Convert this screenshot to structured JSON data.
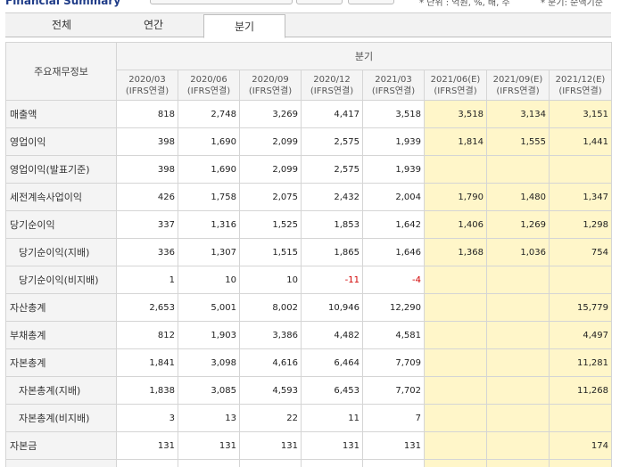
{
  "top": {
    "title": "Financial Summary",
    "note_left": "* 단위 : 억원, %, 배, 주",
    "note_right": "* 분기: 순액기준"
  },
  "tabs": [
    "전체",
    "연간",
    "분기"
  ],
  "selected_tab": "분기",
  "table": {
    "corner_label": "주요재무정보",
    "group_label": "분기",
    "columns": [
      {
        "period": "2020/03",
        "basis": "(IFRS연결)",
        "estimate": false
      },
      {
        "period": "2020/06",
        "basis": "(IFRS연결)",
        "estimate": false
      },
      {
        "period": "2020/09",
        "basis": "(IFRS연결)",
        "estimate": false
      },
      {
        "period": "2020/12",
        "basis": "(IFRS연결)",
        "estimate": false
      },
      {
        "period": "2021/03",
        "basis": "(IFRS연결)",
        "estimate": false
      },
      {
        "period": "2021/06(E)",
        "basis": "(IFRS연결)",
        "estimate": true
      },
      {
        "period": "2021/09(E)",
        "basis": "(IFRS연결)",
        "estimate": true
      },
      {
        "period": "2021/12(E)",
        "basis": "(IFRS연결)",
        "estimate": true
      }
    ],
    "rows": [
      {
        "label": "매출액",
        "sub": false,
        "values": [
          "818",
          "2,748",
          "3,269",
          "4,417",
          "3,518",
          "3,518",
          "3,134",
          "3,151"
        ]
      },
      {
        "label": "영업이익",
        "sub": false,
        "values": [
          "398",
          "1,690",
          "2,099",
          "2,575",
          "1,939",
          "1,814",
          "1,555",
          "1,441"
        ]
      },
      {
        "label": "영업이익(발표기준)",
        "sub": false,
        "values": [
          "398",
          "1,690",
          "2,099",
          "2,575",
          "1,939",
          "",
          "",
          ""
        ]
      },
      {
        "label": "세전계속사업이익",
        "sub": false,
        "values": [
          "426",
          "1,758",
          "2,075",
          "2,432",
          "2,004",
          "1,790",
          "1,480",
          "1,347"
        ]
      },
      {
        "label": "당기순이익",
        "sub": false,
        "values": [
          "337",
          "1,316",
          "1,525",
          "1,853",
          "1,642",
          "1,406",
          "1,269",
          "1,298"
        ]
      },
      {
        "label": "당기순이익(지배)",
        "sub": true,
        "values": [
          "336",
          "1,307",
          "1,515",
          "1,865",
          "1,646",
          "1,368",
          "1,036",
          "754"
        ]
      },
      {
        "label": "당기순이익(비지배)",
        "sub": true,
        "values": [
          "1",
          "10",
          "10",
          "-11",
          "-4",
          "",
          "",
          ""
        ]
      },
      {
        "label": "자산총계",
        "sub": false,
        "values": [
          "2,653",
          "5,001",
          "8,002",
          "10,946",
          "12,290",
          "",
          "",
          "15,779"
        ]
      },
      {
        "label": "부채총계",
        "sub": false,
        "values": [
          "812",
          "1,903",
          "3,386",
          "4,482",
          "4,581",
          "",
          "",
          "4,497"
        ]
      },
      {
        "label": "자본총계",
        "sub": false,
        "values": [
          "1,841",
          "3,098",
          "4,616",
          "6,464",
          "7,709",
          "",
          "",
          "11,281"
        ]
      },
      {
        "label": "자본총계(지배)",
        "sub": true,
        "values": [
          "1,838",
          "3,085",
          "4,593",
          "6,453",
          "7,702",
          "",
          "",
          "11,268"
        ]
      },
      {
        "label": "자본총계(비지배)",
        "sub": true,
        "values": [
          "3",
          "13",
          "22",
          "11",
          "7",
          "",
          "",
          ""
        ]
      },
      {
        "label": "자본금",
        "sub": false,
        "values": [
          "131",
          "131",
          "131",
          "131",
          "131",
          "",
          "",
          "174"
        ]
      },
      {
        "label": "",
        "sub": false,
        "values": [
          "",
          "",
          "",
          "",
          "",
          "",
          "",
          ""
        ]
      }
    ]
  }
}
